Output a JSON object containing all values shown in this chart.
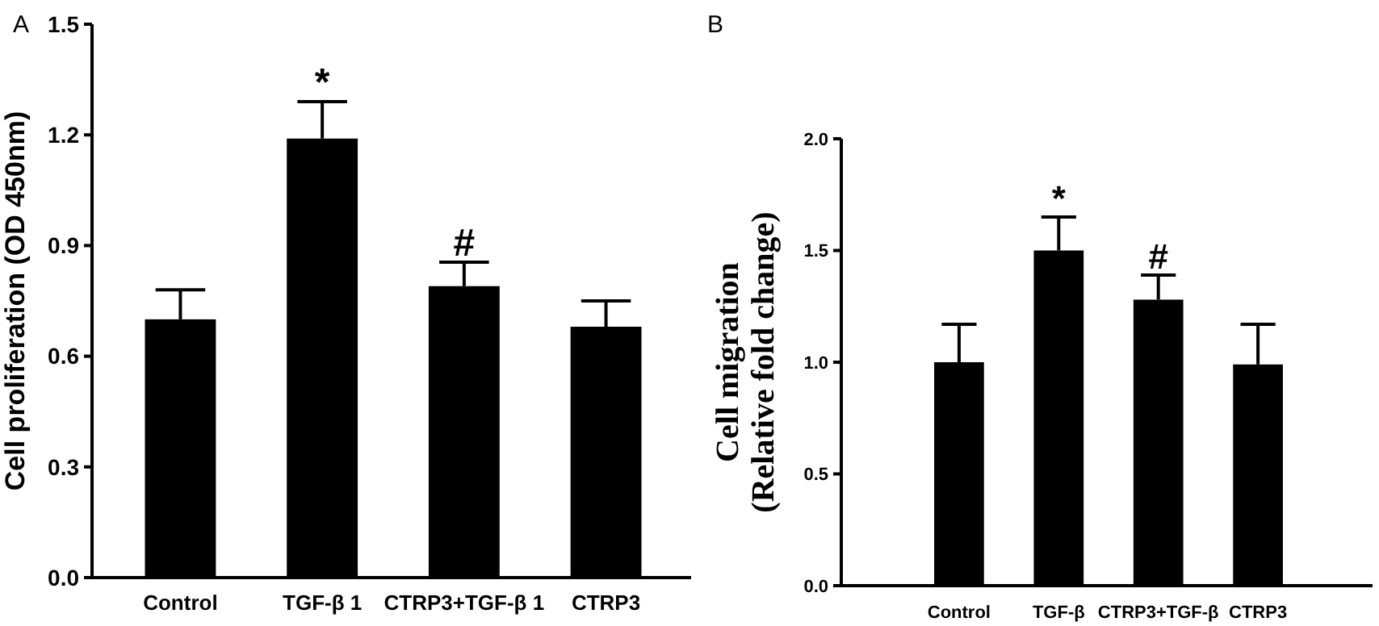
{
  "chart_data": [
    {
      "type": "bar",
      "title": "A",
      "ylabel": "Cell proliferation (OD 450nm)",
      "categories": [
        "Control",
        "TGF-β 1",
        "CTRP3+TGF-β 1",
        "CTRP3"
      ],
      "series": [
        {
          "color": "#000000",
          "values": [
            0.7,
            1.19,
            0.79,
            0.68
          ],
          "errors": [
            [
              0.7,
              0.78
            ],
            [
              1.19,
              1.29
            ],
            [
              0.79,
              0.855
            ],
            [
              0.68,
              0.75
            ]
          ]
        }
      ],
      "ylim": [
        0,
        1.5
      ],
      "yticks": [
        {
          "value": 0,
          "label": "0.0"
        },
        0.3,
        0.6,
        0.9,
        1.2,
        1.5
      ],
      "grid": false,
      "annotations": [
        {
          "text": "*",
          "x": "TGF-β 1",
          "y": 1.29
        },
        {
          "text": "#",
          "x": "CTRP3+TGF-β 1",
          "y": 0.855
        }
      ]
    },
    {
      "type": "bar",
      "title": "B",
      "ylabel": "Cell migration\n(Relative fold change)",
      "categories": [
        "Control",
        "TGF-β",
        "CTRP3+TGF-β",
        "CTRP3"
      ],
      "series": [
        {
          "color": "#000000",
          "values": [
            1.0,
            1.5,
            1.28,
            0.99
          ],
          "errors": [
            [
              1.0,
              1.17
            ],
            [
              1.5,
              1.65
            ],
            [
              1.28,
              1.39
            ],
            [
              0.99,
              1.17
            ]
          ]
        }
      ],
      "ylim": [
        0,
        2
      ],
      "yticks": [
        {
          "value": 0,
          "label": "0.0"
        },
        0.5,
        {
          "value": 1,
          "label": "1.0"
        },
        1.5,
        {
          "value": 2,
          "label": "2.0"
        }
      ],
      "grid": false,
      "annotations": [
        {
          "text": "*",
          "x": "TGF-β",
          "y": 1.65
        },
        {
          "text": "#",
          "x": "CTRP3+TGF-β",
          "y": 1.39
        }
      ]
    }
  ]
}
